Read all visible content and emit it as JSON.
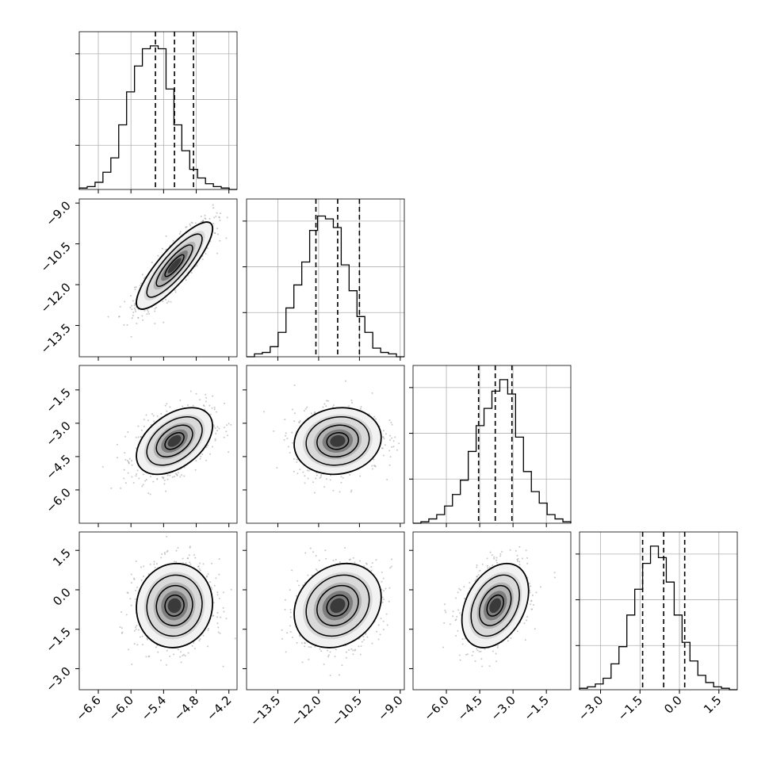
{
  "chart_data": {
    "type": "corner",
    "parameters": [
      {
        "range": [
          -6.95,
          -4.05
        ],
        "ticks": [
          -6.6,
          -6.0,
          -5.4,
          -4.8,
          -4.2
        ],
        "tick_labels": [
          "−6.6",
          "−6.0",
          "−5.4",
          "−4.8",
          "−4.2"
        ],
        "quantiles": [
          -5.55,
          -5.2,
          -4.85
        ],
        "hist": [
          0.01,
          0.02,
          0.05,
          0.12,
          0.22,
          0.45,
          0.68,
          0.86,
          0.98,
          1.0,
          0.98,
          0.7,
          0.45,
          0.27,
          0.14,
          0.08,
          0.04,
          0.02,
          0.01,
          0.0
        ]
      },
      {
        "range": [
          -14.65,
          -8.85
        ],
        "ticks": [
          -13.5,
          -12.0,
          -10.5,
          -9.0
        ],
        "tick_labels": [
          "−13.5",
          "−12.0",
          "−10.5",
          "−9.0"
        ],
        "quantiles": [
          -12.1,
          -11.3,
          -10.5
        ],
        "hist": [
          0.0,
          0.02,
          0.03,
          0.07,
          0.17,
          0.34,
          0.5,
          0.66,
          0.88,
          0.98,
          0.96,
          0.9,
          0.64,
          0.46,
          0.28,
          0.17,
          0.06,
          0.03,
          0.02,
          0.0
        ]
      },
      {
        "range": [
          -7.5,
          -0.4
        ],
        "ticks": [
          -6.0,
          -4.5,
          -3.0,
          -1.5
        ],
        "tick_labels": [
          "−6.0",
          "−4.5",
          "−3.0",
          "−1.5"
        ],
        "quantiles": [
          -4.55,
          -3.8,
          -3.05
        ],
        "hist": [
          0.0,
          0.01,
          0.03,
          0.06,
          0.12,
          0.2,
          0.3,
          0.5,
          0.68,
          0.8,
          0.92,
          1.0,
          0.9,
          0.6,
          0.36,
          0.22,
          0.14,
          0.06,
          0.03,
          0.01
        ]
      },
      {
        "range": [
          -3.8,
          2.2
        ],
        "ticks": [
          -3.0,
          -1.5,
          0.0,
          1.5
        ],
        "tick_labels": [
          "−3.0",
          "−1.5",
          "0.0",
          "1.5"
        ],
        "quantiles": [
          -1.4,
          -0.6,
          0.2
        ],
        "hist": [
          0.01,
          0.02,
          0.04,
          0.08,
          0.18,
          0.3,
          0.52,
          0.7,
          0.88,
          1.0,
          0.92,
          0.75,
          0.52,
          0.33,
          0.2,
          0.1,
          0.05,
          0.02,
          0.01,
          0.0
        ]
      }
    ],
    "row_tick_values": {
      "1": [
        -9.0,
        -10.5,
        -12.0,
        -13.5
      ],
      "2": [
        -1.5,
        -3.0,
        -4.5,
        -6.0
      ],
      "3": [
        1.5,
        0.0,
        -1.5,
        -3.0
      ]
    },
    "row_tick_labels": {
      "1": [
        "−9.0",
        "−10.5",
        "−12.0",
        "−13.5"
      ],
      "2": [
        "−1.5",
        "−3.0",
        "−4.5",
        "−6.0"
      ],
      "3": [
        "1.5",
        "0.0",
        "−1.5",
        "−3.0"
      ]
    },
    "correlations": {
      "1,0": 0.85,
      "2,0": 0.45,
      "2,1": 0.1,
      "3,0": 0.05,
      "3,1": 0.2,
      "3,2": 0.35
    },
    "means": [
      -5.2,
      -11.3,
      -3.8,
      -0.6
    ],
    "sigmas": [
      0.35,
      0.8,
      0.75,
      0.8
    ],
    "grid": true
  },
  "colors": {
    "line": "#000000",
    "grid": "#b0b0b0",
    "points": "#9a9a9a",
    "background": "#ffffff"
  }
}
